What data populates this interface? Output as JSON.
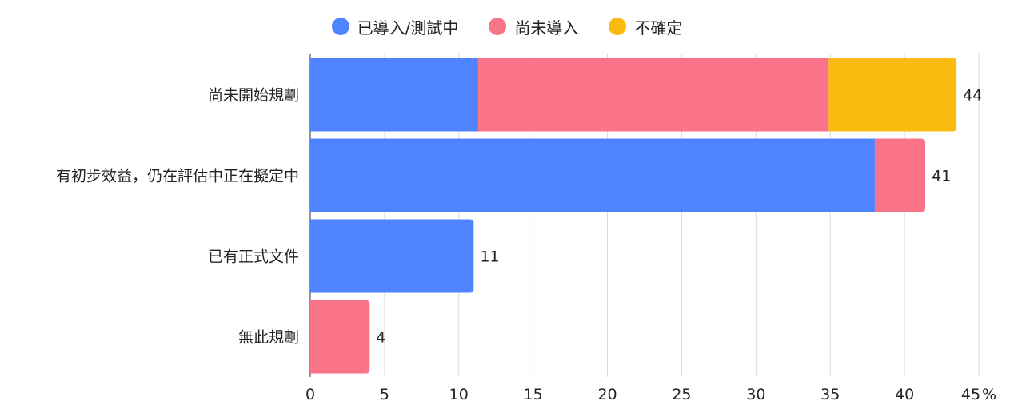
{
  "chart_data": {
    "type": "bar",
    "orientation": "horizontal",
    "stacked": true,
    "categories": [
      "尚未開始規劃",
      "有初步效益，仍在評估中正在擬定中",
      "已有正式文件",
      "無此規劃"
    ],
    "series": [
      {
        "name": "已導入/測試中",
        "color": "#4F83FF",
        "values": [
          11.3,
          38.0,
          11.0,
          0
        ]
      },
      {
        "name": "尚未導入",
        "color": "#F97489",
        "values": [
          23.6,
          3.4,
          0,
          4.0
        ]
      },
      {
        "name": "不確定",
        "color": "#FABB11",
        "values": [
          8.6,
          0,
          0,
          0
        ]
      }
    ],
    "totals_labels": [
      "44",
      "41",
      "11",
      "4"
    ],
    "xlim": [
      0,
      45
    ],
    "xticks": [
      "0",
      "5",
      "10",
      "15",
      "20",
      "25",
      "30",
      "35",
      "40",
      "45"
    ],
    "x_unit": "%",
    "grid": true,
    "legend_position": "top"
  }
}
